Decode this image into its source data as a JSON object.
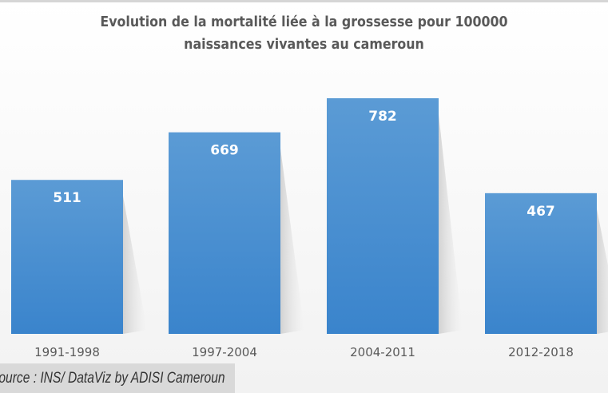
{
  "chart_data": {
    "type": "bar",
    "title": "Evolution de la mortalité liée à la grossesse pour 100000 naissances vivantes au cameroun",
    "title_lines": [
      "Evolution de la mortalité liée à la grossesse pour 100000",
      "naissances vivantes au cameroun"
    ],
    "categories": [
      "1991-1998",
      "1997-2004",
      "2004-2011",
      "2012-2018"
    ],
    "values": [
      511,
      669,
      782,
      467
    ],
    "xlabel": "",
    "ylabel": "",
    "ylim": [
      0,
      800
    ],
    "grid": false,
    "data_labels": true,
    "bar_color": "#4a90d4"
  },
  "source": "Source : INS/ DataViz by ADISI Cameroun"
}
